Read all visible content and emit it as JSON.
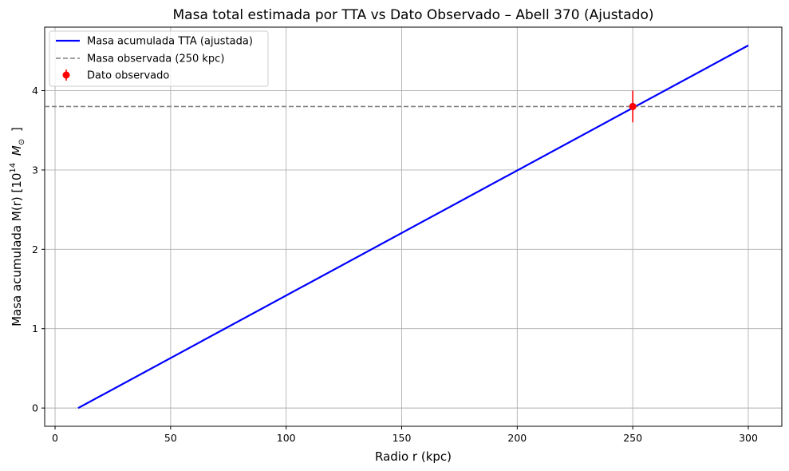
{
  "chart_data": {
    "type": "line",
    "title": "Masa total estimada por TTA vs Dato Observado – Abell 370 (Ajustado)",
    "xlabel": "Radio r (kpc)",
    "ylabel": {
      "prefix": "Masa acumulada M(r) [10",
      "sup": "14",
      "unit_symbol": "M",
      "unit_sub": "⊙",
      "suffix": "]"
    },
    "xlim": [
      -4.5,
      314.5
    ],
    "ylim": [
      -0.23,
      4.8
    ],
    "xticks": [
      0,
      50,
      100,
      150,
      200,
      250,
      300
    ],
    "yticks": [
      0,
      1,
      2,
      3,
      4
    ],
    "grid": true,
    "legend_position": "top-left",
    "series": [
      {
        "name": "Masa acumulada TTA (ajustada)",
        "kind": "line",
        "color": "#0000ff",
        "x": [
          10,
          300
        ],
        "y": [
          0.0,
          4.57
        ]
      },
      {
        "name": "Masa observada (250 kpc)",
        "kind": "hline",
        "color": "#808080",
        "y": 3.8
      },
      {
        "name": "Dato observado",
        "kind": "errorbar",
        "color": "#ff0000",
        "x": 250,
        "y": 3.8,
        "yerr": 0.2
      }
    ]
  }
}
